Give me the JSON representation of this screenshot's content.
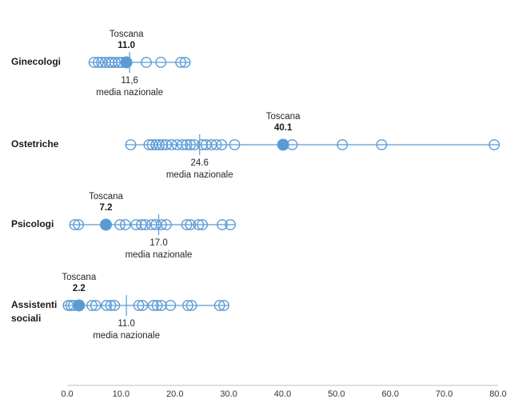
{
  "chart_data": {
    "type": "scatter",
    "title": "",
    "xlabel": "",
    "ylabel": "",
    "xlim": [
      0,
      80
    ],
    "grid": false,
    "legend_position": "none",
    "marker_color": "#5B9BD5",
    "axis_color": "#BFBFBF",
    "x_tick_values": [
      0,
      10,
      20,
      30,
      40,
      50,
      60,
      70,
      80
    ],
    "x_tick_labels": [
      "0.0",
      "10.0",
      "20.0",
      "30.0",
      "40.0",
      "50.0",
      "60.0",
      "70.0",
      "80.0"
    ],
    "rows": [
      {
        "category": "Ginecologi",
        "toscana_label": "Toscana",
        "toscana_value": 11.0,
        "toscana_value_label": "11.0",
        "media_value": 11.6,
        "media_value_label": "11,6",
        "media_caption": "media nazionale",
        "points": [
          5.0,
          5.8,
          6.4,
          7.1,
          7.8,
          8.3,
          8.9,
          9.5,
          10.1,
          14.7,
          17.4,
          21.1,
          21.9
        ]
      },
      {
        "category": "Ostetriche",
        "toscana_label": "Toscana",
        "toscana_value": 40.1,
        "toscana_value_label": "40.1",
        "media_value": 24.6,
        "media_value_label": "24.6",
        "media_caption": "media nazionale",
        "points": [
          11.8,
          15.2,
          15.8,
          16.5,
          17.1,
          17.7,
          18.4,
          19.4,
          20.4,
          21.4,
          22.2,
          22.9,
          23.6,
          25.1,
          25.8,
          26.8,
          27.7,
          28.7,
          31.1,
          41.8,
          51.1,
          58.4,
          79.3
        ]
      },
      {
        "category": "Psicologi",
        "toscana_label": "Toscana",
        "toscana_value": 7.2,
        "toscana_value_label": "7.2",
        "media_value": 17.0,
        "media_value_label": "17.0",
        "media_caption": "media nazionale",
        "points": [
          1.4,
          2.1,
          9.8,
          10.8,
          12.8,
          13.8,
          14.5,
          15.7,
          16.5,
          17.5,
          18.4,
          22.2,
          22.9,
          24.4,
          25.1,
          28.8,
          30.3
        ]
      },
      {
        "category": "Assistenti sociali",
        "toscana_label": "Toscana",
        "toscana_value": 2.2,
        "toscana_value_label": "2.2",
        "media_value": 11.0,
        "media_value_label": "11.0",
        "media_caption": "media nazionale",
        "points": [
          0.2,
          0.7,
          1.2,
          4.6,
          5.3,
          7.3,
          8.1,
          8.8,
          13.3,
          14.0,
          16.0,
          16.7,
          17.5,
          19.2,
          22.4,
          23.1,
          28.3,
          29.1
        ]
      }
    ]
  }
}
